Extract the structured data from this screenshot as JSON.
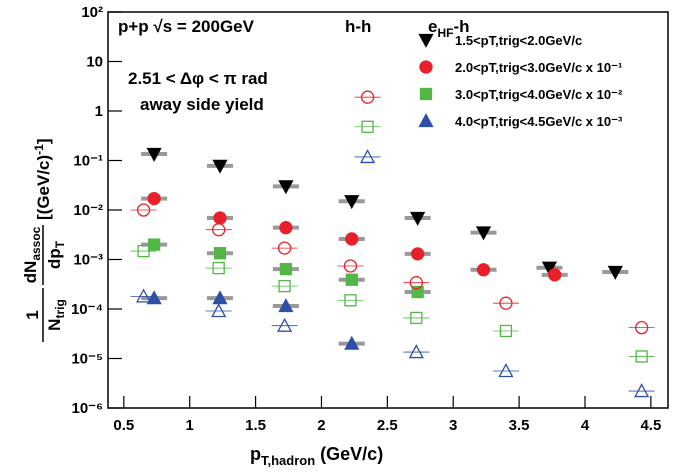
{
  "chart_data": {
    "type": "scatter",
    "log_y": true,
    "xlim": [
      0.38,
      4.63
    ],
    "ylim": [
      1e-06,
      100
    ],
    "xticks": [
      0.5,
      1,
      1.5,
      2,
      2.5,
      3,
      3.5,
      4,
      4.5
    ],
    "yticks": [
      {
        "value": 1e-06,
        "label": "10⁻⁶"
      },
      {
        "value": 1e-05,
        "label": "10⁻⁵"
      },
      {
        "value": 0.0001,
        "label": "10⁻⁴"
      },
      {
        "value": 0.001,
        "label": "10⁻³"
      },
      {
        "value": 0.01,
        "label": "10⁻²"
      },
      {
        "value": 0.1,
        "label": "10⁻¹"
      },
      1,
      10,
      {
        "value": 100,
        "label": "10²"
      }
    ],
    "xlabel": {
      "text": "p",
      "sub": "T,hadron",
      "after": " (GeV/c)"
    },
    "ylabel": {
      "num1": "1",
      "den1": "N",
      "den1_sub": "trig",
      "num2": "dN",
      "num2_sub": "assoc",
      "den2": "dp",
      "den2_sub": "T",
      "unit": "[(GeV/c)",
      "unit_sup": "-1",
      "unit_end": "]"
    },
    "annotations": {
      "system": "p+p  √s = 200GeV",
      "hh": "h-h",
      "ehf": {
        "text": "e",
        "sub": "HF",
        "after": "-h"
      },
      "cut": "2.51 < Δφ < π rad",
      "yield": "away side yield"
    },
    "series": [
      {
        "name": "1.5<pT,trig<2.0GeV/c",
        "color": "#000000",
        "marker": "triangle-down",
        "filled": true,
        "x": [
          0.73,
          1.23,
          1.73,
          2.23,
          2.73,
          3.23,
          3.73,
          4.23
        ],
        "values": [
          0.135,
          0.078,
          0.03,
          0.015,
          0.0069,
          0.0035,
          0.00068,
          0.00056
        ]
      },
      {
        "name": "2.0<pT,trig<3.0GeV/c x 10⁻¹",
        "color": "#e8202a",
        "marker": "circle",
        "filled": true,
        "x": [
          0.73,
          1.23,
          1.73,
          2.23,
          2.73,
          3.23,
          3.77
        ],
        "values": [
          0.017,
          0.0069,
          0.0044,
          0.0026,
          0.0013,
          0.00062,
          0.00049
        ]
      },
      {
        "name": "3.0<pT,trig<4.0GeV/c x 10⁻²",
        "color": "#52b747",
        "marker": "square",
        "filled": true,
        "x": [
          0.73,
          1.23,
          1.73,
          2.23,
          2.73
        ],
        "values": [
          0.002,
          0.00134,
          0.00064,
          0.00039,
          0.00022
        ]
      },
      {
        "name": "4.0<pT,trig<4.5GeV/c x 10⁻³",
        "color": "#2f4fa8",
        "marker": "triangle-up",
        "filled": true,
        "x": [
          0.73,
          1.23,
          1.73,
          2.23
        ],
        "values": [
          0.000166,
          0.000166,
          0.000115,
          2e-05
        ]
      },
      {
        "color": "#e8202a",
        "marker": "circle",
        "filled": false,
        "x": [
          0.65,
          1.22,
          1.72,
          2.22,
          2.35,
          2.72,
          3.4,
          4.43
        ],
        "values": [
          0.01,
          0.004,
          0.0017,
          0.00074,
          1.9,
          0.00034,
          0.000131,
          4.2e-05
        ]
      },
      {
        "color": "#52b747",
        "marker": "square",
        "filled": false,
        "x": [
          0.65,
          1.22,
          1.72,
          2.22,
          2.35,
          2.72,
          3.4,
          4.43
        ],
        "values": [
          0.00148,
          0.00067,
          0.00029,
          0.00015,
          0.48,
          6.6e-05,
          3.6e-05,
          1.1e-05
        ]
      },
      {
        "color": "#2f4fa8",
        "marker": "triangle-up",
        "filled": false,
        "x": [
          0.65,
          1.22,
          1.72,
          2.35,
          2.72,
          3.4,
          4.43
        ],
        "values": [
          0.00018,
          9.1e-05,
          4.6e-05,
          0.118,
          1.35e-05,
          5.6e-06,
          2.2e-06
        ]
      }
    ]
  }
}
